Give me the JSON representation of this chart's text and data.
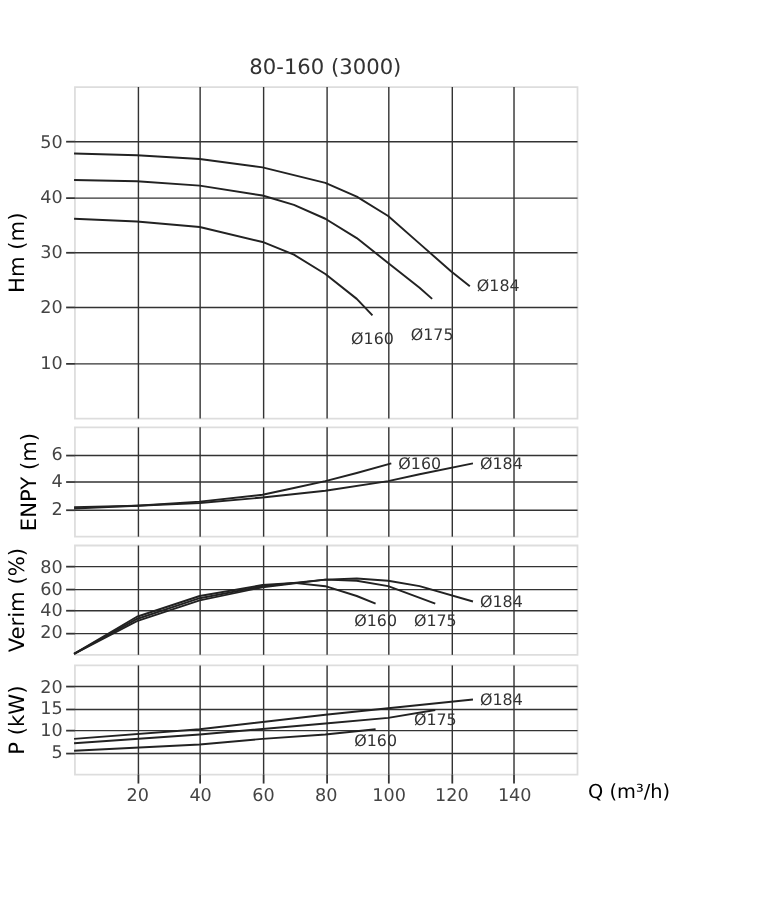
{
  "chart_data": [
    {
      "type": "line",
      "title": "80-160 (3000)",
      "ylabel": "Hm (m)",
      "xlim": [
        0,
        160
      ],
      "xticks": [
        20,
        40,
        60,
        80,
        100,
        120,
        140
      ],
      "ylim": [
        0,
        60
      ],
      "yticks": [
        10,
        20,
        30,
        40,
        50
      ],
      "grid": true,
      "legend": false,
      "tick_labels": "y",
      "marker": "none",
      "line_style": "solid",
      "series": [
        {
          "name": "Ø184",
          "color": "#222222",
          "x": [
            0,
            20,
            40,
            60,
            80,
            90,
            100,
            110,
            120,
            126
          ],
          "values": [
            47.8,
            47.5,
            46.8,
            45.3,
            42.5,
            40,
            36.5,
            31.5,
            26.5,
            23.8
          ]
        },
        {
          "name": "Ø175",
          "color": "#222222",
          "x": [
            0,
            20,
            40,
            60,
            70,
            80,
            90,
            100,
            110,
            114
          ],
          "values": [
            43,
            42.8,
            42,
            40.2,
            38.5,
            36,
            32.5,
            28,
            23.5,
            21.5
          ]
        },
        {
          "name": "Ø160",
          "color": "#222222",
          "x": [
            0,
            20,
            40,
            60,
            70,
            80,
            90,
            95
          ],
          "values": [
            36,
            35.5,
            34.5,
            31.8,
            29.5,
            26,
            21.5,
            18.5
          ]
        }
      ]
    },
    {
      "type": "line",
      "ylabel": "ENPY (m)",
      "xlim": [
        0,
        160
      ],
      "xticks": [
        20,
        40,
        60,
        80,
        100,
        120,
        140
      ],
      "ylim": [
        0,
        8
      ],
      "yticks": [
        2,
        4,
        6
      ],
      "grid": true,
      "legend": false,
      "tick_labels": "y",
      "marker": "none",
      "line_style": "solid",
      "series": [
        {
          "name": "Ø160",
          "color": "#222222",
          "x": [
            0,
            20,
            40,
            60,
            70,
            80,
            90,
            101
          ],
          "values": [
            2,
            2.2,
            2.5,
            3,
            3.5,
            4,
            4.6,
            5.3
          ]
        },
        {
          "name": "Ø184",
          "color": "#222222",
          "x": [
            0,
            20,
            40,
            60,
            80,
            100,
            110,
            127
          ],
          "values": [
            2.1,
            2.2,
            2.4,
            2.8,
            3.3,
            4,
            4.5,
            5.3
          ]
        }
      ]
    },
    {
      "type": "line",
      "ylabel": "Verim (%)",
      "xlim": [
        0,
        160
      ],
      "xticks": [
        20,
        40,
        60,
        80,
        100,
        120,
        140
      ],
      "ylim": [
        0,
        100
      ],
      "yticks": [
        20,
        40,
        60,
        80
      ],
      "grid": true,
      "legend": false,
      "tick_labels": "y",
      "marker": "none",
      "line_style": "solid",
      "series": [
        {
          "name": "Ø160",
          "color": "#222222",
          "x": [
            0,
            20,
            40,
            60,
            70,
            80,
            90,
            96
          ],
          "values": [
            0,
            34,
            53,
            63,
            65,
            62,
            53,
            46
          ]
        },
        {
          "name": "Ø175",
          "color": "#222222",
          "x": [
            0,
            20,
            40,
            60,
            80,
            90,
            100,
            115
          ],
          "values": [
            0,
            32,
            51,
            62,
            68,
            67,
            62,
            46
          ]
        },
        {
          "name": "Ø184",
          "color": "#222222",
          "x": [
            0,
            20,
            40,
            60,
            80,
            90,
            100,
            110,
            127
          ],
          "values": [
            0,
            30,
            49,
            61,
            68,
            69,
            67,
            62,
            48
          ]
        }
      ]
    },
    {
      "type": "line",
      "ylabel": "P (kW)",
      "xlabel": "Q (m³/h)",
      "xlim": [
        0,
        160
      ],
      "xticks": [
        20,
        40,
        60,
        80,
        100,
        120,
        140
      ],
      "ylim": [
        0,
        25
      ],
      "yticks": [
        5,
        10,
        15,
        20
      ],
      "grid": true,
      "legend": false,
      "marker": "none",
      "line_style": "solid",
      "series": [
        {
          "name": "Ø184",
          "color": "#222222",
          "x": [
            0,
            40,
            80,
            100,
            127
          ],
          "values": [
            8,
            10.2,
            13.5,
            15,
            17
          ]
        },
        {
          "name": "Ø175",
          "color": "#222222",
          "x": [
            0,
            40,
            80,
            100,
            115
          ],
          "values": [
            7,
            9,
            11.5,
            12.8,
            14.6
          ]
        },
        {
          "name": "Ø160",
          "color": "#222222",
          "x": [
            0,
            40,
            60,
            80,
            96
          ],
          "values": [
            5.3,
            6.7,
            8,
            9,
            10.2
          ]
        }
      ]
    }
  ]
}
